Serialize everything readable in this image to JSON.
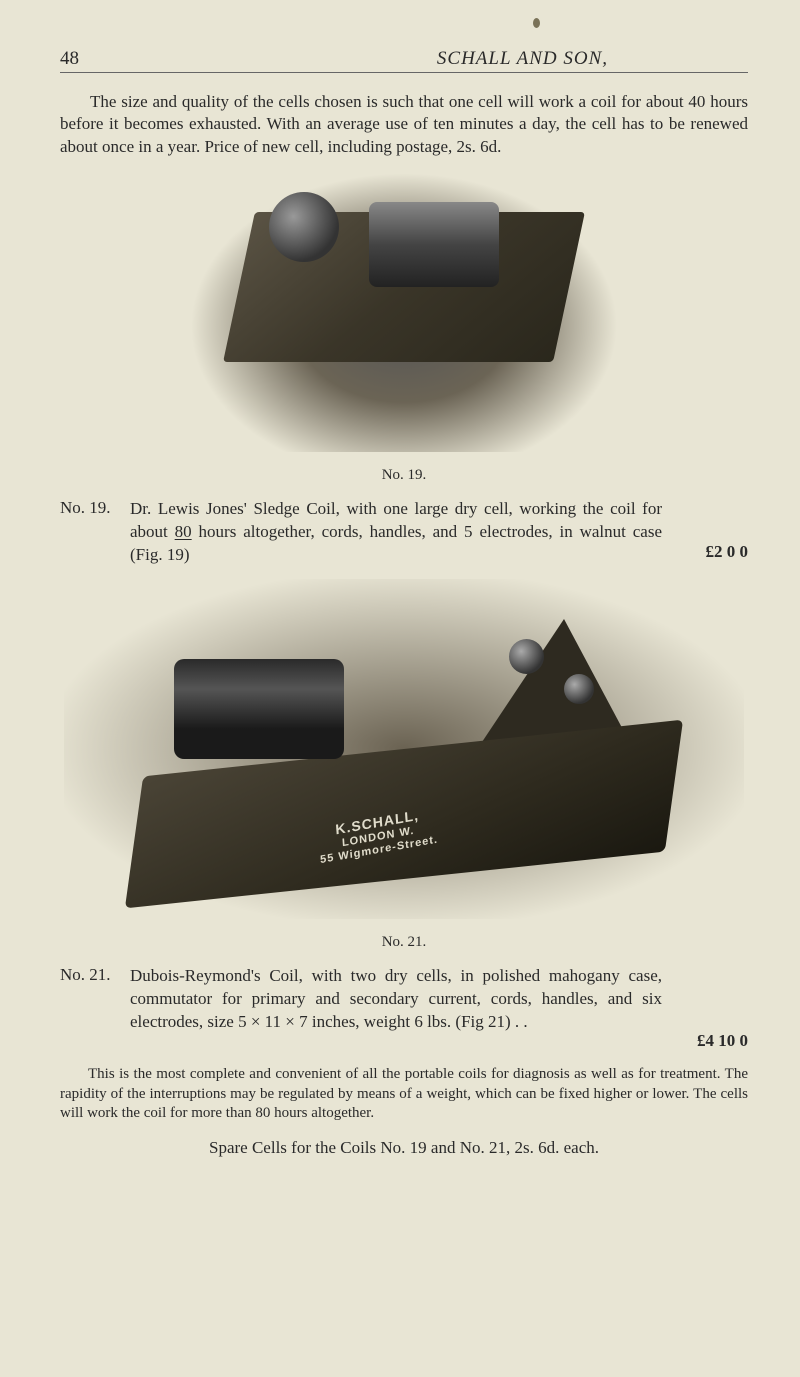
{
  "page_number": "48",
  "running_head": "SCHALL AND SON,",
  "intro": "The size and quality of the cells chosen is such that one cell will work a coil for about 40 hours before it becomes exhausted. With an average use of ten minutes a day, the cell has to be renewed about once in a year. Price of new cell, including postage, 2s. 6d.",
  "fig19_caption": "No. 19.",
  "entry19": {
    "no": "No. 19.",
    "text_a": "Dr. Lewis Jones' Sledge Coil, with one large dry cell, working the coil for about ",
    "hours": "80",
    "text_b": " hours altogether, cords, handles, and 5 electrodes, in walnut case (Fig. 19)",
    "price": "£2  0  0"
  },
  "fig21_maker": {
    "l1": "K.SCHALL,",
    "l2": "LONDON W.",
    "l3": "55 Wigmore-Street."
  },
  "fig21_caption": "No. 21.",
  "entry21": {
    "no": "No. 21.",
    "text": "Dubois-Reymond's Coil, with two dry cells, in polished mahogany case, commutator for primary and secondary current, cords, handles, and six electrodes, size 5 × 11 × 7 inches, weight 6 lbs. (Fig 21)  . .",
    "price": "£4 10  0"
  },
  "note": "This is the most complete and convenient of all the portable coils for diagnosis as well as for treatment. The rapidity of the interruptions may be regulated by means of a weight, which can be fixed higher or lower. The cells will work the coil for more than 80 hours altogether.",
  "spare": "Spare Cells for the Coils No. 19 and No. 21, 2s. 6d. each.",
  "colors": {
    "page_bg": "#e8e5d4",
    "text": "#2a2a2a",
    "rule": "#666"
  }
}
